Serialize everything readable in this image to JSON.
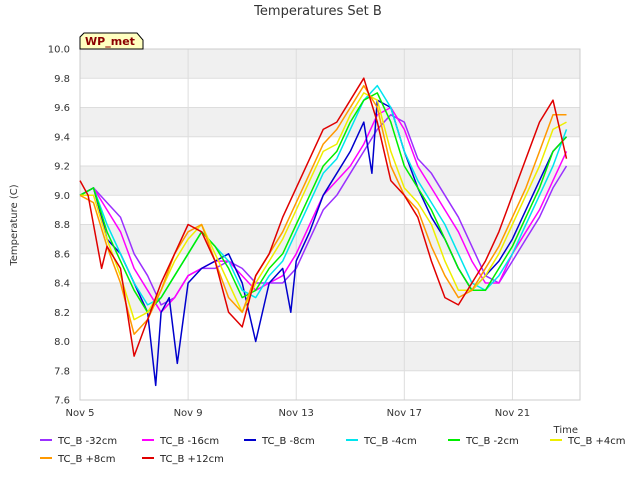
{
  "chart_data": {
    "type": "line",
    "title": "Temperatures Set B",
    "xlabel": "Time",
    "ylabel": "Temperature (C)",
    "badge": "WP_met",
    "xlim": [
      0,
      18.5
    ],
    "ylim": [
      7.6,
      10.0
    ],
    "x_ticks": [
      {
        "x": 0,
        "label": "Nov 5"
      },
      {
        "x": 4,
        "label": "Nov 9"
      },
      {
        "x": 8,
        "label": "Nov 13"
      },
      {
        "x": 12,
        "label": "Nov 17"
      },
      {
        "x": 16,
        "label": "Nov 21"
      }
    ],
    "y_ticks": [
      "7.6",
      "7.8",
      "8.0",
      "8.2",
      "8.4",
      "8.6",
      "8.8",
      "9.0",
      "9.2",
      "9.4",
      "9.6",
      "9.8",
      "10.0"
    ],
    "grid": true,
    "legend_position": "bottom",
    "x_units": "days since Nov 5",
    "series": [
      {
        "name": "TC_B -32cm",
        "color": "#9b30ff",
        "x": [
          0,
          0.5,
          1,
          1.5,
          2,
          2.5,
          3,
          3.5,
          4,
          4.5,
          5,
          5.5,
          6,
          6.5,
          7,
          7.5,
          8,
          8.5,
          9,
          9.5,
          10,
          10.5,
          11,
          11.5,
          12,
          12.5,
          13,
          13.5,
          14,
          14.5,
          15,
          15.5,
          16,
          16.5,
          17,
          17.5,
          18
        ],
        "values": [
          9.0,
          9.05,
          8.95,
          8.85,
          8.6,
          8.45,
          8.25,
          8.3,
          8.45,
          8.5,
          8.5,
          8.55,
          8.5,
          8.4,
          8.4,
          8.4,
          8.5,
          8.7,
          8.9,
          9.0,
          9.15,
          9.3,
          9.45,
          9.55,
          9.5,
          9.25,
          9.15,
          9.0,
          8.85,
          8.65,
          8.45,
          8.4,
          8.55,
          8.7,
          8.85,
          9.05,
          9.2
        ]
      },
      {
        "name": "TC_B -16cm",
        "color": "#ff00ff",
        "x": [
          0,
          0.5,
          1,
          1.5,
          2,
          2.5,
          3,
          3.5,
          4,
          4.5,
          5,
          5.5,
          6,
          6.5,
          7,
          7.5,
          8,
          8.5,
          9,
          9.5,
          10,
          10.5,
          11,
          11.5,
          12,
          12.5,
          13,
          13.5,
          14,
          14.5,
          15,
          15.5,
          16,
          16.5,
          17,
          17.5,
          18
        ],
        "values": [
          9.0,
          9.05,
          8.9,
          8.75,
          8.5,
          8.35,
          8.2,
          8.3,
          8.45,
          8.5,
          8.55,
          8.55,
          8.45,
          8.35,
          8.4,
          8.45,
          8.6,
          8.8,
          9.0,
          9.1,
          9.2,
          9.35,
          9.55,
          9.6,
          9.45,
          9.2,
          9.05,
          8.9,
          8.75,
          8.55,
          8.4,
          8.4,
          8.6,
          8.75,
          8.9,
          9.1,
          9.3
        ]
      },
      {
        "name": "TC_B -8cm",
        "color": "#0000cd",
        "x": [
          0,
          0.5,
          0.8,
          1,
          1.5,
          2,
          2.5,
          2.8,
          3,
          3.3,
          3.6,
          4,
          4.5,
          5,
          5.5,
          6,
          6.5,
          7,
          7.5,
          7.8,
          8,
          8.5,
          9,
          9.5,
          10,
          10.5,
          10.8,
          11,
          11.5,
          12,
          12.5,
          13,
          13.5,
          14,
          14.5,
          15,
          15.5,
          16,
          16.5,
          17,
          17.5,
          18
        ],
        "values": [
          9.0,
          9.05,
          8.85,
          8.7,
          8.6,
          8.4,
          8.2,
          7.7,
          8.2,
          8.3,
          7.85,
          8.4,
          8.5,
          8.55,
          8.6,
          8.4,
          8.0,
          8.4,
          8.5,
          8.2,
          8.55,
          8.75,
          9.0,
          9.15,
          9.3,
          9.5,
          9.15,
          9.65,
          9.6,
          9.3,
          9.05,
          8.85,
          8.7,
          8.5,
          8.35,
          8.45,
          8.55,
          8.7,
          8.9,
          9.1,
          9.3,
          9.4
        ]
      },
      {
        "name": "TC_B -4cm",
        "color": "#00e5ee",
        "x": [
          0,
          0.5,
          1,
          1.5,
          2,
          2.5,
          3,
          3.5,
          4,
          4.5,
          5,
          5.5,
          6,
          6.5,
          7,
          7.5,
          8,
          8.5,
          9,
          9.5,
          10,
          10.5,
          11,
          11.5,
          12,
          12.5,
          13,
          13.5,
          14,
          14.5,
          15,
          15.5,
          16,
          16.5,
          17,
          17.5,
          18
        ],
        "values": [
          9.0,
          9.05,
          8.8,
          8.6,
          8.4,
          8.25,
          8.3,
          8.45,
          8.6,
          8.75,
          8.65,
          8.55,
          8.35,
          8.3,
          8.45,
          8.55,
          8.75,
          8.95,
          9.15,
          9.25,
          9.45,
          9.65,
          9.75,
          9.6,
          9.3,
          9.1,
          8.95,
          8.8,
          8.6,
          8.4,
          8.35,
          8.45,
          8.6,
          8.8,
          9.0,
          9.2,
          9.45
        ]
      },
      {
        "name": "TC_B -2cm",
        "color": "#00ee00",
        "x": [
          0,
          0.5,
          1,
          1.5,
          2,
          2.5,
          3,
          3.5,
          4,
          4.5,
          5,
          5.5,
          6,
          6.5,
          7,
          7.5,
          8,
          8.5,
          9,
          9.5,
          10,
          10.5,
          11,
          11.5,
          12,
          12.5,
          13,
          13.5,
          14,
          14.5,
          15,
          15.5,
          16,
          16.5,
          17,
          17.5,
          18
        ],
        "values": [
          9.0,
          9.05,
          8.75,
          8.55,
          8.35,
          8.2,
          8.3,
          8.45,
          8.6,
          8.75,
          8.65,
          8.5,
          8.3,
          8.35,
          8.5,
          8.6,
          8.8,
          9.0,
          9.2,
          9.3,
          9.5,
          9.65,
          9.7,
          9.5,
          9.2,
          9.05,
          8.9,
          8.7,
          8.5,
          8.35,
          8.35,
          8.5,
          8.65,
          8.85,
          9.05,
          9.3,
          9.4
        ]
      },
      {
        "name": "TC_B +4cm",
        "color": "#eeee00",
        "x": [
          0,
          0.5,
          1,
          1.5,
          2,
          2.5,
          3,
          3.5,
          4,
          4.5,
          5,
          5.5,
          6,
          6.5,
          7,
          7.5,
          8,
          8.5,
          9,
          9.5,
          10,
          10.5,
          11,
          11.5,
          12,
          12.5,
          13,
          13.5,
          14,
          14.5,
          15,
          15.5,
          16,
          16.5,
          17,
          17.5,
          18
        ],
        "values": [
          9.0,
          9.0,
          8.7,
          8.45,
          8.15,
          8.2,
          8.35,
          8.55,
          8.7,
          8.8,
          8.6,
          8.4,
          8.2,
          8.4,
          8.55,
          8.7,
          8.9,
          9.1,
          9.3,
          9.35,
          9.55,
          9.7,
          9.65,
          9.3,
          9.05,
          8.95,
          8.8,
          8.55,
          8.35,
          8.35,
          8.45,
          8.6,
          8.8,
          9.0,
          9.2,
          9.45,
          9.5
        ]
      },
      {
        "name": "TC_B +8cm",
        "color": "#ff9900",
        "x": [
          0,
          0.5,
          1,
          1.5,
          2,
          2.5,
          3,
          3.5,
          4,
          4.5,
          5,
          5.5,
          6,
          6.5,
          7,
          7.5,
          8,
          8.5,
          9,
          9.5,
          10,
          10.5,
          11,
          11.5,
          12,
          12.5,
          13,
          13.5,
          14,
          14.5,
          15,
          15.5,
          16,
          16.5,
          17,
          17.5,
          18
        ],
        "values": [
          9.0,
          8.95,
          8.65,
          8.4,
          8.05,
          8.15,
          8.35,
          8.6,
          8.75,
          8.8,
          8.55,
          8.3,
          8.2,
          8.45,
          8.6,
          8.75,
          8.95,
          9.15,
          9.35,
          9.45,
          9.6,
          9.75,
          9.6,
          9.2,
          9.0,
          8.9,
          8.65,
          8.45,
          8.3,
          8.35,
          8.5,
          8.65,
          8.85,
          9.05,
          9.3,
          9.55,
          9.55
        ]
      },
      {
        "name": "TC_B +12cm",
        "color": "#e00000",
        "x": [
          0,
          0.3,
          0.8,
          1,
          1.5,
          2,
          2.5,
          3,
          3.5,
          4,
          4.5,
          5,
          5.5,
          6,
          6.5,
          7,
          7.5,
          8,
          8.5,
          9,
          9.5,
          10,
          10.5,
          11,
          11.5,
          12,
          12.5,
          13,
          13.5,
          14,
          14.5,
          15,
          15.5,
          16,
          16.5,
          17,
          17.5,
          18
        ],
        "values": [
          9.1,
          9.0,
          8.5,
          8.65,
          8.5,
          7.9,
          8.15,
          8.4,
          8.6,
          8.8,
          8.75,
          8.55,
          8.2,
          8.1,
          8.45,
          8.6,
          8.85,
          9.05,
          9.25,
          9.45,
          9.5,
          9.65,
          9.8,
          9.5,
          9.1,
          9.0,
          8.85,
          8.55,
          8.3,
          8.25,
          8.4,
          8.55,
          8.75,
          9.0,
          9.25,
          9.5,
          9.65,
          9.25
        ]
      }
    ]
  }
}
